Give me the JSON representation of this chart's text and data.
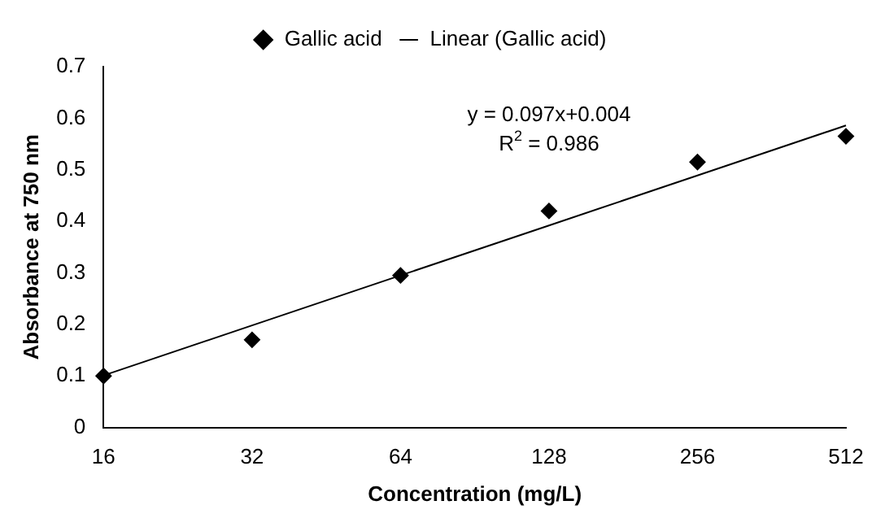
{
  "chart_data": {
    "type": "scatter",
    "xlabel": "Concentration (mg/L)",
    "ylabel": "Absorbance at 750 nm",
    "categories": [
      "16",
      "32",
      "64",
      "128",
      "256",
      "512"
    ],
    "series": [
      {
        "name": "Gallic acid",
        "type": "scatter",
        "color": "#000000",
        "marker": "diamond",
        "values": [
          0.1,
          0.17,
          0.295,
          0.42,
          0.515,
          0.565
        ]
      },
      {
        "name": "Linear (Gallic acid)",
        "type": "line",
        "color": "#000000",
        "marker": "none",
        "line_style": "solid",
        "values": [
          0.101,
          0.198,
          0.295,
          0.392,
          0.489,
          0.586
        ]
      }
    ],
    "ylim": [
      0,
      0.7
    ],
    "yticks": [
      0,
      0.1,
      0.2,
      0.3,
      0.4,
      0.5,
      0.6,
      0.7
    ],
    "grid": false,
    "legend": "top",
    "annotations": [
      "y = 0.097x+0.004",
      "R$^{2}$ = 0.986"
    ]
  }
}
